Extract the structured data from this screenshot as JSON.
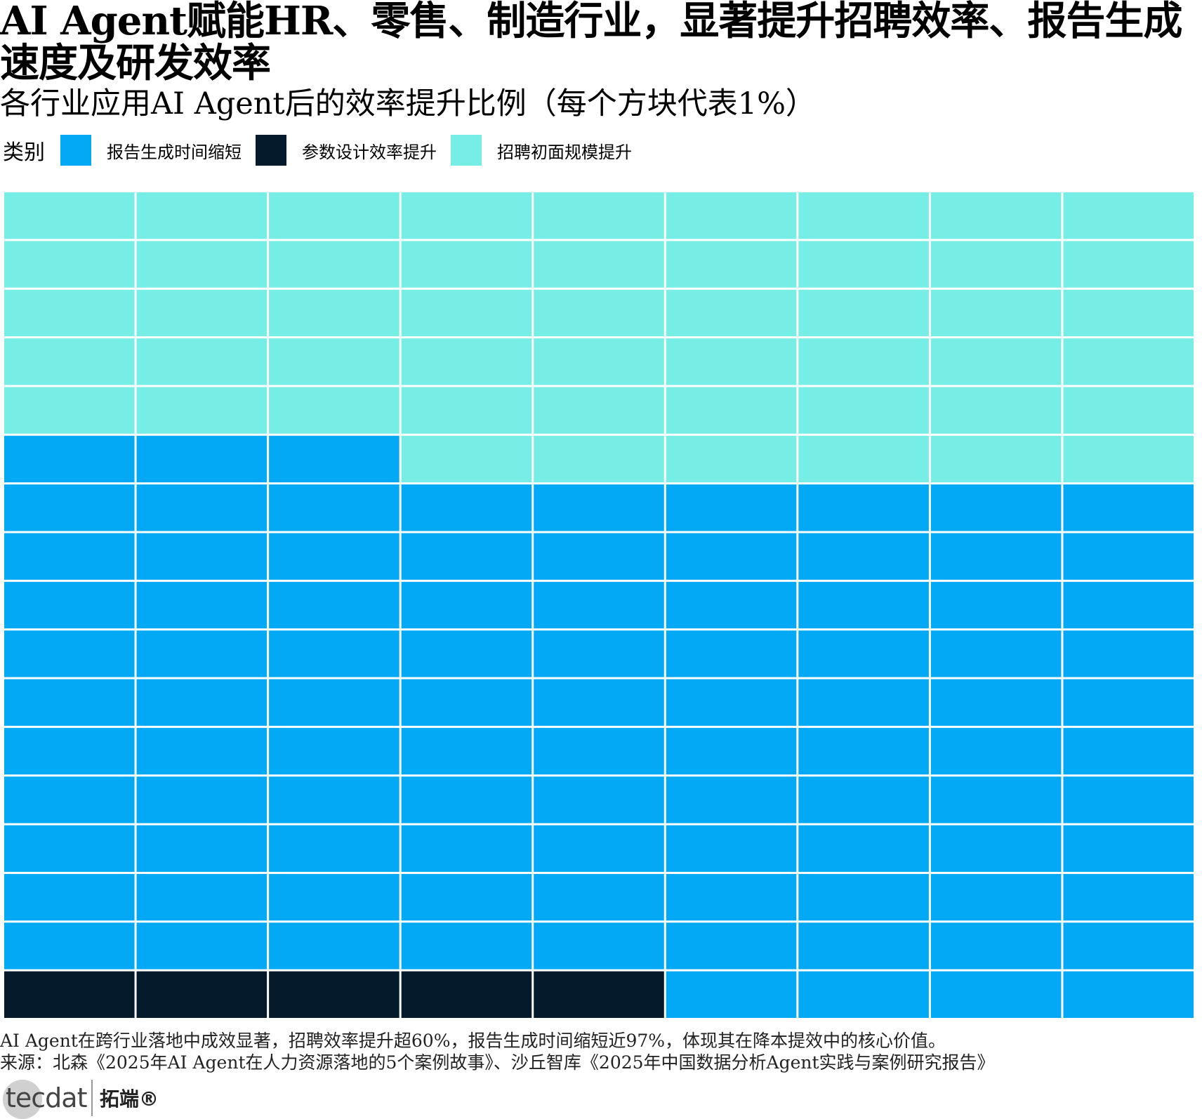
{
  "title": "AI Agent赋能HR、零售、制造行业，显著提升招聘效率、报告生成速度及研发效率",
  "subtitle": "各行业应用AI Agent后的效率提升比例（每个方块代表1%）",
  "legend": {
    "title": "类别",
    "items": [
      {
        "label": "报告生成时间缩短",
        "color": "#03a9f4"
      },
      {
        "label": "参数设计效率提升",
        "color": "#051b2c"
      },
      {
        "label": "招聘初面规模提升",
        "color": "#76ede5"
      }
    ]
  },
  "chart_data": {
    "type": "waffle",
    "title": "AI Agent赋能HR、零售、制造行业，显著提升招聘效率、报告生成速度及研发效率",
    "subtitle": "各行业应用AI Agent后的效率提升比例（每个方块代表1%）",
    "unit_per_cell": "1%",
    "grid": {
      "columns": 9,
      "rows": 17
    },
    "fill_order": "bottom-to-top, left-to-right",
    "series": [
      {
        "name": "参数设计效率提升",
        "value": 5,
        "color": "#051b2c"
      },
      {
        "name": "报告生成时间缩短",
        "value": 97,
        "color": "#03a9f4"
      },
      {
        "name": "招聘初面规模提升",
        "value": 51,
        "color": "#76ede5"
      }
    ],
    "legend_position": "top-left"
  },
  "notes": {
    "summary": "AI Agent在跨行业落地中成效显著，招聘效率提升超60%，报告生成时间缩短近97%，体现其在降本提效中的核心价值。",
    "source": "来源：北森《2025年AI Agent在人力资源落地的5个案例故事》、沙丘智库《2025年中国数据分析Agent实践与案例研究报告》"
  },
  "logo": {
    "word": "tecdat",
    "cn": "拓端®"
  }
}
